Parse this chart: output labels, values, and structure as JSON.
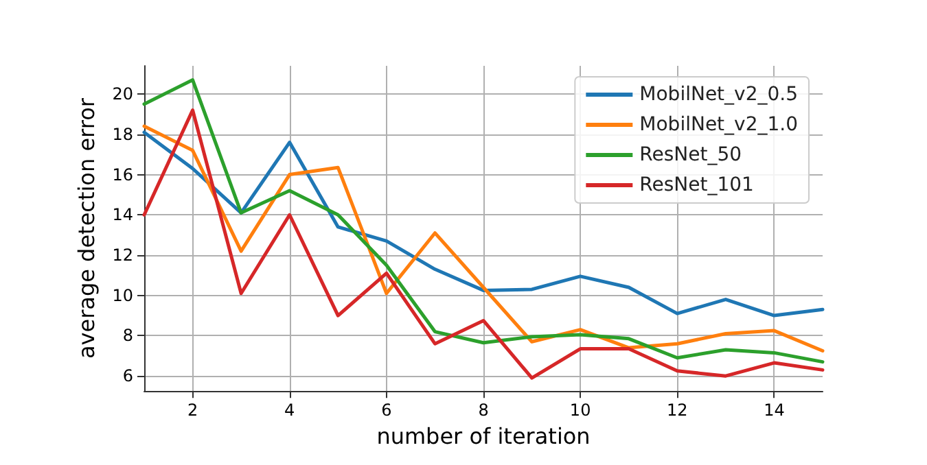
{
  "chart_data": {
    "type": "line",
    "xlabel": "number of iteration",
    "ylabel": "average detection error",
    "x": [
      1,
      2,
      3,
      4,
      5,
      6,
      7,
      8,
      9,
      10,
      11,
      12,
      13,
      14,
      15
    ],
    "xlim": [
      1,
      15
    ],
    "xticks": [
      2,
      4,
      6,
      8,
      10,
      12,
      14
    ],
    "ylim": [
      5.25,
      21.4
    ],
    "yticks": [
      6,
      8,
      10,
      12,
      14,
      16,
      18,
      20
    ],
    "grid": true,
    "legend": "top right",
    "marker": "none",
    "line_style": "solid",
    "series": [
      {
        "name": "MobilNet_v2_0.5",
        "color": "#1f77b4",
        "values": [
          18.1,
          16.3,
          14.1,
          17.6,
          13.4,
          12.7,
          11.3,
          10.25,
          10.3,
          10.95,
          10.4,
          9.1,
          9.8,
          9.0,
          9.3
        ]
      },
      {
        "name": "MobilNet_v2_1.0",
        "color": "#ff7f0e",
        "values": [
          18.4,
          17.2,
          12.2,
          16.0,
          16.35,
          10.1,
          13.1,
          10.4,
          7.7,
          8.3,
          7.4,
          7.6,
          8.1,
          8.25,
          7.25
        ]
      },
      {
        "name": "ResNet_50",
        "color": "#2ca02c",
        "values": [
          19.5,
          20.7,
          14.1,
          15.2,
          14.0,
          11.5,
          8.2,
          7.65,
          7.95,
          8.05,
          7.85,
          6.9,
          7.3,
          7.15,
          6.7
        ]
      },
      {
        "name": "ResNet_101",
        "color": "#d62728",
        "values": [
          14.0,
          19.2,
          10.1,
          14.0,
          9.0,
          11.1,
          7.6,
          8.75,
          5.9,
          7.35,
          7.35,
          6.25,
          6.0,
          6.65,
          6.3
        ]
      }
    ]
  }
}
